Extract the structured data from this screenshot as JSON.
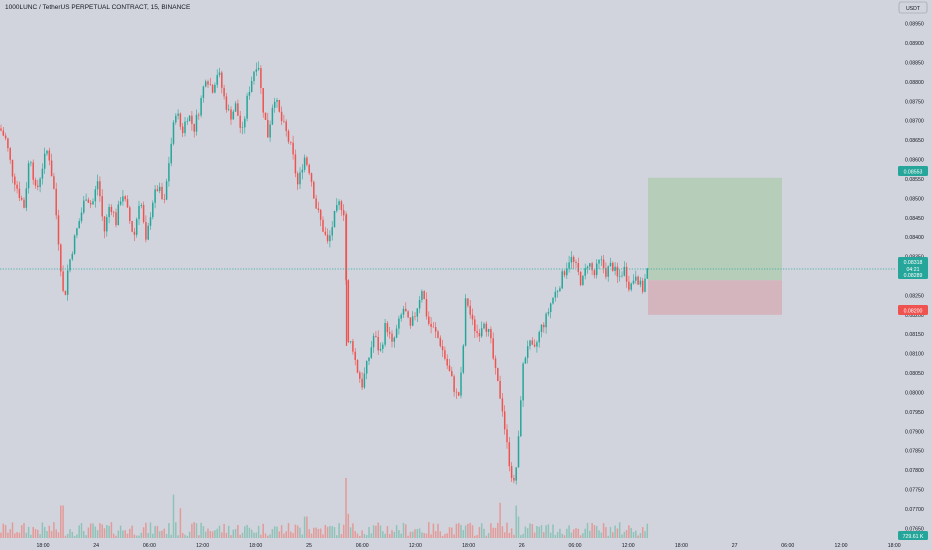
{
  "header": {
    "symbol_title": "1000LUNC / TetherUS PERPETUAL CONTRACT, 15, BINANCE"
  },
  "currency_button": {
    "label": "USDT"
  },
  "colors": {
    "background": "#d1d4dc",
    "up": "#26a69a",
    "down": "#ef5350",
    "profit_zone": "#b6ceb9",
    "loss_zone": "#d5b5bd",
    "entry_tag": "#26a69a",
    "stop_tag": "#ef5350",
    "current_tag": "#26a69a",
    "current_line": "#26a69a"
  },
  "price_axis": {
    "ticks": [
      "0.08950",
      "0.08900",
      "0.08850",
      "0.08800",
      "0.08750",
      "0.08700",
      "0.08650",
      "0.08600",
      "0.08550",
      "0.08500",
      "0.08450",
      "0.08400",
      "0.08350",
      "0.08300",
      "0.08250",
      "0.08200",
      "0.08150",
      "0.08100",
      "0.08050",
      "0.08000",
      "0.07950",
      "0.07900",
      "0.07850",
      "0.07800",
      "0.07750",
      "0.07700",
      "0.07650"
    ]
  },
  "time_axis": {
    "labels": [
      "18:00",
      "24",
      "06:00",
      "12:00",
      "18:00",
      "25",
      "06:00",
      "12:00",
      "18:00",
      "26",
      "06:00",
      "12:00",
      "18:00",
      "27",
      "06:00",
      "12:00",
      "18:00"
    ]
  },
  "price_tags": {
    "target": "0.08553",
    "current": "0.08318",
    "countdown": "04:21",
    "entry": "0.08289",
    "stop": "0.08200"
  },
  "volume_tag": {
    "label": "729.61 K"
  },
  "position": {
    "type": "long",
    "entry": 0.08289,
    "target": 0.08553,
    "stop": 0.082
  },
  "chart_data": {
    "type": "candlestick",
    "title": "1000LUNC / TetherUS PERPETUAL CONTRACT, 15, BINANCE",
    "ylim": [
      0.07625,
      0.08975
    ],
    "current_price": 0.08318,
    "price_path": [
      [
        0,
        0.0868
      ],
      [
        6,
        0.0865
      ],
      [
        12,
        0.0857
      ],
      [
        18,
        0.0852
      ],
      [
        24,
        0.0848
      ],
      [
        30,
        0.0862
      ],
      [
        36,
        0.0851
      ],
      [
        42,
        0.0858
      ],
      [
        48,
        0.0863
      ],
      [
        54,
        0.0852
      ],
      [
        60,
        0.0835
      ],
      [
        64,
        0.0823
      ],
      [
        68,
        0.0832
      ],
      [
        74,
        0.0839
      ],
      [
        80,
        0.0845
      ],
      [
        86,
        0.0851
      ],
      [
        92,
        0.0848
      ],
      [
        98,
        0.0855
      ],
      [
        104,
        0.0841
      ],
      [
        110,
        0.0849
      ],
      [
        116,
        0.0844
      ],
      [
        122,
        0.0852
      ],
      [
        128,
        0.0846
      ],
      [
        134,
        0.084
      ],
      [
        140,
        0.0851
      ],
      [
        146,
        0.0838
      ],
      [
        152,
        0.0849
      ],
      [
        158,
        0.0853
      ],
      [
        164,
        0.0848
      ],
      [
        170,
        0.0862
      ],
      [
        176,
        0.0873
      ],
      [
        182,
        0.0867
      ],
      [
        188,
        0.0872
      ],
      [
        194,
        0.0868
      ],
      [
        200,
        0.0874
      ],
      [
        206,
        0.0882
      ],
      [
        212,
        0.0878
      ],
      [
        218,
        0.0883
      ],
      [
        224,
        0.0876
      ],
      [
        230,
        0.0871
      ],
      [
        236,
        0.0874
      ],
      [
        242,
        0.0866
      ],
      [
        248,
        0.0877
      ],
      [
        254,
        0.0883
      ],
      [
        258,
        0.0886
      ],
      [
        262,
        0.0875
      ],
      [
        268,
        0.0866
      ],
      [
        274,
        0.0877
      ],
      [
        280,
        0.0871
      ],
      [
        286,
        0.0867
      ],
      [
        292,
        0.0862
      ],
      [
        298,
        0.0853
      ],
      [
        304,
        0.0861
      ],
      [
        310,
        0.0857
      ],
      [
        316,
        0.0848
      ],
      [
        322,
        0.0843
      ],
      [
        328,
        0.0838
      ],
      [
        334,
        0.0845
      ],
      [
        340,
        0.0849
      ],
      [
        345,
        0.0846
      ],
      [
        347,
        0.0812
      ],
      [
        352,
        0.0813
      ],
      [
        356,
        0.0807
      ],
      [
        362,
        0.0802
      ],
      [
        368,
        0.0808
      ],
      [
        374,
        0.0815
      ],
      [
        380,
        0.081
      ],
      [
        386,
        0.0818
      ],
      [
        392,
        0.0812
      ],
      [
        398,
        0.0817
      ],
      [
        404,
        0.0822
      ],
      [
        410,
        0.0816
      ],
      [
        416,
        0.0821
      ],
      [
        422,
        0.0827
      ],
      [
        428,
        0.0818
      ],
      [
        434,
        0.0816
      ],
      [
        440,
        0.0813
      ],
      [
        446,
        0.0808
      ],
      [
        452,
        0.0803
      ],
      [
        458,
        0.0798
      ],
      [
        462,
        0.0806
      ],
      [
        466,
        0.0825
      ],
      [
        472,
        0.0818
      ],
      [
        478,
        0.0815
      ],
      [
        484,
        0.0819
      ],
      [
        490,
        0.0814
      ],
      [
        496,
        0.0804
      ],
      [
        502,
        0.0797
      ],
      [
        506,
        0.0788
      ],
      [
        510,
        0.0781
      ],
      [
        514,
        0.0776
      ],
      [
        518,
        0.0785
      ],
      [
        522,
        0.0805
      ],
      [
        528,
        0.0813
      ],
      [
        534,
        0.081
      ],
      [
        540,
        0.0816
      ],
      [
        546,
        0.0819
      ],
      [
        552,
        0.0824
      ],
      [
        558,
        0.0827
      ],
      [
        564,
        0.0831
      ],
      [
        570,
        0.0835
      ],
      [
        576,
        0.0832
      ],
      [
        582,
        0.0828
      ],
      [
        588,
        0.0834
      ],
      [
        594,
        0.083
      ],
      [
        600,
        0.0834
      ],
      [
        606,
        0.0831
      ],
      [
        612,
        0.0833
      ],
      [
        618,
        0.0829
      ],
      [
        624,
        0.0832
      ],
      [
        630,
        0.0827
      ],
      [
        636,
        0.0831
      ],
      [
        642,
        0.0826
      ],
      [
        648,
        0.0832
      ]
    ],
    "volume_spikes": [
      [
        62,
        0.5
      ],
      [
        174,
        0.7
      ],
      [
        180,
        0.45
      ],
      [
        306,
        0.3
      ],
      [
        346,
        1.0
      ],
      [
        348,
        0.35
      ],
      [
        500,
        0.55
      ],
      [
        516,
        0.5
      ],
      [
        518,
        0.3
      ]
    ]
  }
}
